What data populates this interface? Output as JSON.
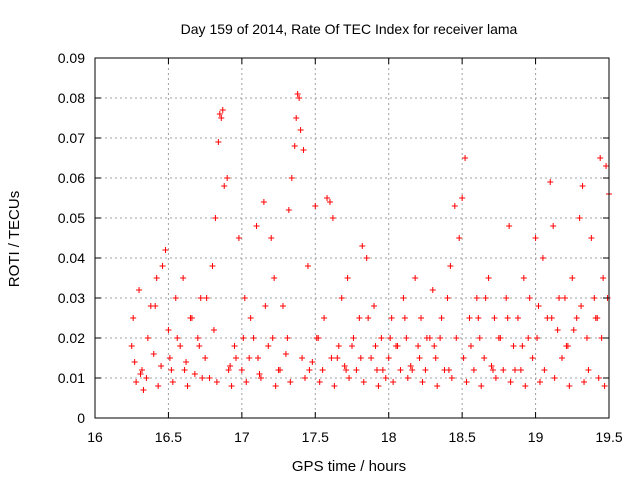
{
  "chart_data": {
    "type": "scatter",
    "title": "Day 159 of 2014, Rate Of TEC Index for receiver lama",
    "xlabel": "GPS time / hours",
    "ylabel": "ROTI / TECUs",
    "xlim": [
      16,
      19.5
    ],
    "ylim": [
      0,
      0.09
    ],
    "grid": true,
    "marker": "+",
    "color": "#ff0000",
    "x_ticks": [
      16,
      16.5,
      17,
      17.5,
      18,
      18.5,
      19,
      19.5
    ],
    "x_tick_labels": [
      "16",
      "16.5",
      "17",
      "17.5",
      "18",
      "18.5",
      "19",
      "19.5"
    ],
    "y_ticks": [
      0,
      0.01,
      0.02,
      0.03,
      0.04,
      0.05,
      0.06,
      0.07,
      0.08,
      0.09
    ],
    "y_tick_labels": [
      "0",
      "0.01",
      "0.02",
      "0.03",
      "0.04",
      "0.05",
      "0.06",
      "0.07",
      "0.08",
      "0.09"
    ],
    "series": [
      {
        "name": "ROTI",
        "x": [
          16.25,
          16.27,
          16.3,
          16.32,
          16.35,
          16.38,
          16.4,
          16.42,
          16.45,
          16.48,
          16.5,
          16.52,
          16.55,
          16.58,
          16.6,
          16.62,
          16.65,
          16.68,
          16.7,
          16.72,
          16.75,
          16.78,
          16.8,
          16.82,
          16.84,
          16.85,
          16.86,
          16.87,
          16.88,
          16.9,
          16.92,
          16.95,
          16.98,
          17.0,
          17.02,
          17.05,
          17.08,
          17.1,
          17.12,
          17.15,
          17.18,
          17.2,
          17.22,
          17.25,
          17.28,
          17.3,
          17.32,
          17.34,
          17.36,
          17.37,
          17.38,
          17.39,
          17.4,
          17.42,
          17.45,
          17.48,
          17.5,
          17.52,
          17.55,
          17.58,
          17.6,
          17.62,
          17.65,
          17.68,
          17.7,
          17.72,
          17.75,
          17.78,
          17.8,
          17.82,
          17.85,
          17.88,
          17.9,
          17.92,
          17.95,
          17.98,
          18.0,
          18.02,
          18.05,
          18.08,
          18.1,
          18.12,
          18.15,
          18.18,
          18.2,
          18.22,
          18.25,
          18.28,
          18.3,
          18.32,
          18.35,
          18.38,
          18.4,
          18.42,
          18.45,
          18.48,
          18.5,
          18.52,
          18.55,
          18.58,
          18.6,
          18.62,
          18.65,
          18.68,
          18.7,
          18.72,
          18.75,
          18.78,
          18.8,
          18.82,
          18.85,
          18.88,
          18.9,
          18.92,
          18.95,
          18.98,
          19.0,
          19.02,
          19.05,
          19.08,
          19.1,
          19.12,
          19.15,
          19.18,
          19.2,
          19.22,
          19.25,
          19.28,
          19.3,
          19.32,
          19.35,
          19.38,
          19.4,
          19.42,
          19.44,
          19.46,
          19.48,
          19.5,
          16.26,
          16.31,
          16.36,
          16.41,
          16.46,
          16.51,
          16.56,
          16.61,
          16.66,
          16.71,
          16.76,
          16.81,
          16.91,
          16.96,
          17.01,
          17.06,
          17.11,
          17.16,
          17.21,
          17.26,
          17.31,
          17.41,
          17.46,
          17.51,
          17.56,
          17.61,
          17.66,
          17.71,
          17.76,
          17.81,
          17.86,
          17.91,
          17.96,
          18.01,
          18.06,
          18.11,
          18.16,
          18.21,
          18.26,
          18.31,
          18.36,
          18.41,
          18.46,
          18.51,
          18.56,
          18.61,
          18.66,
          18.71,
          18.76,
          18.81,
          18.86,
          18.91,
          18.96,
          19.01,
          19.06,
          19.11,
          19.16,
          19.21,
          19.26,
          19.31,
          19.36,
          19.41,
          19.45,
          19.49,
          16.28,
          16.33,
          16.43,
          16.53,
          16.63,
          16.73,
          16.83,
          16.93,
          17.03,
          17.13,
          17.23,
          17.33,
          17.43,
          17.53,
          17.63,
          17.73,
          17.83,
          17.93,
          18.03,
          18.13,
          18.23,
          18.33,
          18.43,
          18.53,
          18.63,
          18.73,
          18.83,
          18.93,
          19.03,
          19.13,
          19.23,
          19.33,
          19.43,
          19.47
        ],
        "y": [
          0.018,
          0.014,
          0.032,
          0.012,
          0.01,
          0.028,
          0.016,
          0.035,
          0.013,
          0.042,
          0.022,
          0.012,
          0.03,
          0.018,
          0.035,
          0.014,
          0.025,
          0.011,
          0.02,
          0.03,
          0.015,
          0.01,
          0.038,
          0.05,
          0.069,
          0.076,
          0.075,
          0.077,
          0.058,
          0.06,
          0.013,
          0.018,
          0.045,
          0.012,
          0.03,
          0.015,
          0.02,
          0.048,
          0.011,
          0.054,
          0.018,
          0.045,
          0.035,
          0.012,
          0.028,
          0.016,
          0.052,
          0.06,
          0.068,
          0.075,
          0.081,
          0.08,
          0.072,
          0.067,
          0.038,
          0.014,
          0.053,
          0.02,
          0.012,
          0.055,
          0.054,
          0.05,
          0.015,
          0.03,
          0.013,
          0.035,
          0.018,
          0.012,
          0.025,
          0.043,
          0.04,
          0.015,
          0.028,
          0.012,
          0.02,
          0.01,
          0.015,
          0.025,
          0.018,
          0.012,
          0.03,
          0.02,
          0.013,
          0.035,
          0.018,
          0.025,
          0.012,
          0.02,
          0.032,
          0.015,
          0.02,
          0.012,
          0.03,
          0.038,
          0.053,
          0.045,
          0.055,
          0.065,
          0.025,
          0.012,
          0.03,
          0.02,
          0.015,
          0.035,
          0.013,
          0.025,
          0.02,
          0.012,
          0.03,
          0.048,
          0.018,
          0.025,
          0.012,
          0.035,
          0.02,
          0.015,
          0.045,
          0.028,
          0.04,
          0.025,
          0.059,
          0.048,
          0.022,
          0.015,
          0.03,
          0.018,
          0.035,
          0.025,
          0.05,
          0.058,
          0.02,
          0.045,
          0.03,
          0.025,
          0.065,
          0.035,
          0.063,
          0.056,
          0.025,
          0.011,
          0.02,
          0.028,
          0.038,
          0.015,
          0.02,
          0.012,
          0.025,
          0.018,
          0.03,
          0.022,
          0.012,
          0.015,
          0.02,
          0.025,
          0.015,
          0.028,
          0.02,
          0.012,
          0.02,
          0.015,
          0.012,
          0.02,
          0.025,
          0.015,
          0.018,
          0.012,
          0.02,
          0.015,
          0.025,
          0.018,
          0.012,
          0.02,
          0.018,
          0.025,
          0.012,
          0.015,
          0.02,
          0.018,
          0.025,
          0.012,
          0.02,
          0.015,
          0.018,
          0.025,
          0.03,
          0.012,
          0.02,
          0.025,
          0.012,
          0.018,
          0.03,
          0.02,
          0.012,
          0.025,
          0.03,
          0.018,
          0.022,
          0.028,
          0.012,
          0.025,
          0.02,
          0.03,
          0.009,
          0.007,
          0.008,
          0.009,
          0.008,
          0.01,
          0.009,
          0.008,
          0.009,
          0.01,
          0.008,
          0.009,
          0.01,
          0.009,
          0.008,
          0.01,
          0.009,
          0.008,
          0.009,
          0.01,
          0.009,
          0.008,
          0.01,
          0.009,
          0.008,
          0.01,
          0.009,
          0.008,
          0.009,
          0.01,
          0.008,
          0.009,
          0.01,
          0.008
        ]
      }
    ]
  }
}
